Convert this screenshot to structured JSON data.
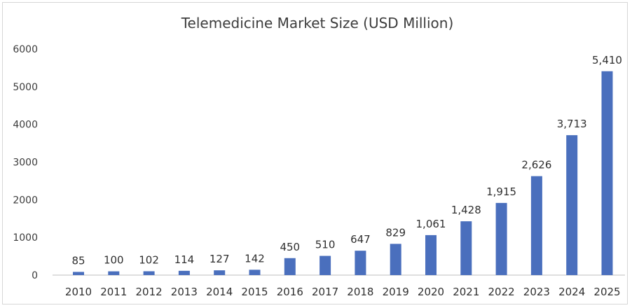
{
  "chart_data": {
    "type": "bar",
    "title": "Telemedicine Market Size (USD Million)",
    "xlabel": "",
    "ylabel": "",
    "ylim": [
      0,
      6000
    ],
    "yticks": [
      "0",
      "1000",
      "2000",
      "3000",
      "4000",
      "5000",
      "6000"
    ],
    "grid": false,
    "bar_color": "#4a6fbd",
    "categories": [
      "2010",
      "2011",
      "2012",
      "2013",
      "2014",
      "2015",
      "2016",
      "2017",
      "2018",
      "2019",
      "2020",
      "2021",
      "2022",
      "2023",
      "2024",
      "2025"
    ],
    "values": [
      85,
      100,
      102,
      114,
      127,
      142,
      450,
      510,
      647,
      829,
      1061,
      1428,
      1915,
      2626,
      3713,
      5410
    ],
    "value_labels": [
      "85",
      "100",
      "102",
      "114",
      "127",
      "142",
      "450",
      "510",
      "647",
      "829",
      "1,061",
      "1,428",
      "1,915",
      "2,626",
      "3,713",
      "5,410"
    ]
  }
}
